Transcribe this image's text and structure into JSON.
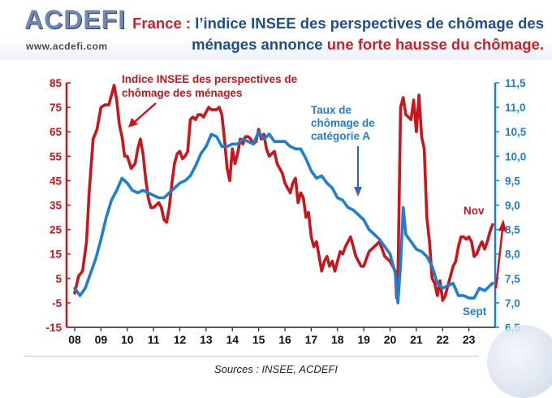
{
  "header": {
    "logo_text": "ACDEFI",
    "logo_url": "www.acdefi.com",
    "title_part1": "France : ",
    "title_part2": "l’indice INSEE des perspectives de chômage des",
    "title_part3": "ménages annonce ",
    "title_part4": "une forte hausse du chômage."
  },
  "colors": {
    "red_series": "#c8161d",
    "blue_series": "#1e7fd0",
    "left_axis": "#c8161d",
    "right_axis": "#1e7fd0"
  },
  "chart_data": {
    "type": "line",
    "x_ticks": [
      "08",
      "09",
      "10",
      "11",
      "12",
      "13",
      "14",
      "15",
      "16",
      "17",
      "18",
      "19",
      "20",
      "21",
      "22",
      "23"
    ],
    "ylim_left": [
      -15,
      85
    ],
    "yticks_left": [
      "85",
      "75",
      "65",
      "55",
      "45",
      "35",
      "25",
      "15",
      "5",
      "-5",
      "-15"
    ],
    "ylim_right": [
      6.5,
      11.5
    ],
    "yticks_right": [
      "11,5",
      "11,0",
      "10,5",
      "10,0",
      "9,5",
      "9,0",
      "8,5",
      "8,0",
      "7,5",
      "7,0",
      "6,5"
    ],
    "grid": false,
    "series": [
      {
        "name": "Indice INSEE des perspectives de chômage des ménages",
        "axis": "left",
        "points": [
          [
            2008.0,
            -1
          ],
          [
            2008.15,
            6
          ],
          [
            2008.3,
            8
          ],
          [
            2008.45,
            20
          ],
          [
            2008.55,
            40
          ],
          [
            2008.7,
            62
          ],
          [
            2008.85,
            66
          ],
          [
            2009.0,
            75
          ],
          [
            2009.15,
            76
          ],
          [
            2009.3,
            76
          ],
          [
            2009.4,
            80
          ],
          [
            2009.5,
            84
          ],
          [
            2009.6,
            78
          ],
          [
            2009.7,
            68
          ],
          [
            2009.8,
            63
          ],
          [
            2009.9,
            55
          ],
          [
            2010.0,
            55
          ],
          [
            2010.15,
            50
          ],
          [
            2010.3,
            52
          ],
          [
            2010.4,
            58
          ],
          [
            2010.5,
            62
          ],
          [
            2010.6,
            56
          ],
          [
            2010.7,
            46
          ],
          [
            2010.8,
            38
          ],
          [
            2010.9,
            34
          ],
          [
            2011.0,
            34
          ],
          [
            2011.1,
            35
          ],
          [
            2011.2,
            36
          ],
          [
            2011.3,
            34
          ],
          [
            2011.4,
            29
          ],
          [
            2011.5,
            28
          ],
          [
            2011.6,
            34
          ],
          [
            2011.7,
            44
          ],
          [
            2011.8,
            52
          ],
          [
            2011.9,
            56
          ],
          [
            2012.0,
            57
          ],
          [
            2012.1,
            54
          ],
          [
            2012.2,
            55
          ],
          [
            2012.3,
            57
          ],
          [
            2012.4,
            70
          ],
          [
            2012.5,
            71
          ],
          [
            2012.6,
            70
          ],
          [
            2012.7,
            72
          ],
          [
            2012.8,
            72
          ],
          [
            2012.9,
            71
          ],
          [
            2013.0,
            73
          ],
          [
            2013.1,
            75
          ],
          [
            2013.2,
            74
          ],
          [
            2013.3,
            74
          ],
          [
            2013.4,
            74
          ],
          [
            2013.5,
            75
          ],
          [
            2013.6,
            72
          ],
          [
            2013.7,
            62
          ],
          [
            2013.8,
            50
          ],
          [
            2013.9,
            45
          ],
          [
            2014.0,
            58
          ],
          [
            2014.1,
            52
          ],
          [
            2014.2,
            56
          ],
          [
            2014.3,
            62
          ],
          [
            2014.4,
            60
          ],
          [
            2014.5,
            63
          ],
          [
            2014.6,
            63
          ],
          [
            2014.7,
            62
          ],
          [
            2014.8,
            60
          ],
          [
            2014.9,
            61
          ],
          [
            2015.0,
            66
          ],
          [
            2015.1,
            62
          ],
          [
            2015.2,
            64
          ],
          [
            2015.3,
            58
          ],
          [
            2015.4,
            55
          ],
          [
            2015.5,
            56
          ],
          [
            2015.6,
            57
          ],
          [
            2015.7,
            52
          ],
          [
            2015.8,
            50
          ],
          [
            2015.9,
            48
          ],
          [
            2016.0,
            44
          ],
          [
            2016.1,
            42
          ],
          [
            2016.2,
            40
          ],
          [
            2016.3,
            44
          ],
          [
            2016.4,
            46
          ],
          [
            2016.5,
            36
          ],
          [
            2016.6,
            40
          ],
          [
            2016.7,
            38
          ],
          [
            2016.8,
            30
          ],
          [
            2016.9,
            32
          ],
          [
            2017.0,
            22
          ],
          [
            2017.1,
            18
          ],
          [
            2017.2,
            20
          ],
          [
            2017.3,
            14
          ],
          [
            2017.4,
            8
          ],
          [
            2017.5,
            12
          ],
          [
            2017.6,
            14
          ],
          [
            2017.7,
            10
          ],
          [
            2017.8,
            12
          ],
          [
            2017.9,
            8
          ],
          [
            2018.0,
            12
          ],
          [
            2018.1,
            16
          ],
          [
            2018.2,
            15
          ],
          [
            2018.3,
            18
          ],
          [
            2018.4,
            20
          ],
          [
            2018.5,
            22
          ],
          [
            2018.6,
            18
          ],
          [
            2018.7,
            14
          ],
          [
            2018.8,
            12
          ],
          [
            2018.9,
            10
          ],
          [
            2019.0,
            10
          ],
          [
            2019.2,
            16
          ],
          [
            2019.4,
            18
          ],
          [
            2019.6,
            20
          ],
          [
            2019.8,
            14
          ],
          [
            2020.0,
            12
          ],
          [
            2020.2,
            8
          ],
          [
            2020.25,
            -3
          ],
          [
            2020.3,
            5
          ],
          [
            2020.4,
            75
          ],
          [
            2020.5,
            79
          ],
          [
            2020.6,
            72
          ],
          [
            2020.8,
            70
          ],
          [
            2020.9,
            78
          ],
          [
            2021.0,
            65
          ],
          [
            2021.1,
            80
          ],
          [
            2021.2,
            63
          ],
          [
            2021.3,
            58
          ],
          [
            2021.4,
            30
          ],
          [
            2021.5,
            20
          ],
          [
            2021.6,
            5
          ],
          [
            2021.7,
            3
          ],
          [
            2021.8,
            -2
          ],
          [
            2021.9,
            4
          ],
          [
            2022.0,
            -4
          ],
          [
            2022.1,
            -2
          ],
          [
            2022.2,
            2
          ],
          [
            2022.3,
            6
          ],
          [
            2022.4,
            10
          ],
          [
            2022.5,
            12
          ],
          [
            2022.6,
            18
          ],
          [
            2022.7,
            22
          ],
          [
            2022.8,
            22
          ],
          [
            2022.9,
            21
          ],
          [
            2023.0,
            22
          ],
          [
            2023.1,
            20
          ],
          [
            2023.2,
            14
          ],
          [
            2023.3,
            15
          ],
          [
            2023.4,
            18
          ],
          [
            2023.5,
            20
          ],
          [
            2023.6,
            17
          ],
          [
            2023.7,
            20
          ],
          [
            2023.8,
            24
          ],
          [
            2023.9,
            27
          ]
        ]
      },
      {
        "name": "Taux de chômage de catégorie A",
        "axis": "right",
        "points": [
          [
            2008.0,
            7.3
          ],
          [
            2008.2,
            7.15
          ],
          [
            2008.4,
            7.3
          ],
          [
            2008.6,
            7.6
          ],
          [
            2008.8,
            7.9
          ],
          [
            2009.0,
            8.3
          ],
          [
            2009.2,
            8.75
          ],
          [
            2009.4,
            9.1
          ],
          [
            2009.6,
            9.3
          ],
          [
            2009.8,
            9.55
          ],
          [
            2010.0,
            9.45
          ],
          [
            2010.2,
            9.3
          ],
          [
            2010.4,
            9.25
          ],
          [
            2010.6,
            9.3
          ],
          [
            2010.8,
            9.25
          ],
          [
            2011.0,
            9.2
          ],
          [
            2011.2,
            9.15
          ],
          [
            2011.4,
            9.15
          ],
          [
            2011.6,
            9.25
          ],
          [
            2011.8,
            9.35
          ],
          [
            2012.0,
            9.45
          ],
          [
            2012.2,
            9.5
          ],
          [
            2012.4,
            9.6
          ],
          [
            2012.6,
            9.8
          ],
          [
            2012.8,
            10.05
          ],
          [
            2013.0,
            10.2
          ],
          [
            2013.2,
            10.45
          ],
          [
            2013.4,
            10.4
          ],
          [
            2013.6,
            10.2
          ],
          [
            2013.8,
            10.2
          ],
          [
            2014.0,
            10.25
          ],
          [
            2014.2,
            10.25
          ],
          [
            2014.4,
            10.35
          ],
          [
            2014.6,
            10.3
          ],
          [
            2014.8,
            10.25
          ],
          [
            2015.0,
            10.5
          ],
          [
            2015.2,
            10.35
          ],
          [
            2015.4,
            10.45
          ],
          [
            2015.6,
            10.3
          ],
          [
            2015.8,
            10.3
          ],
          [
            2016.0,
            10.3
          ],
          [
            2016.2,
            10.2
          ],
          [
            2016.4,
            10.15
          ],
          [
            2016.6,
            10.15
          ],
          [
            2016.8,
            9.95
          ],
          [
            2017.0,
            9.7
          ],
          [
            2017.2,
            9.55
          ],
          [
            2017.4,
            9.6
          ],
          [
            2017.6,
            9.45
          ],
          [
            2017.8,
            9.35
          ],
          [
            2018.0,
            9.15
          ],
          [
            2018.2,
            9.1
          ],
          [
            2018.4,
            8.95
          ],
          [
            2018.6,
            8.9
          ],
          [
            2018.8,
            8.8
          ],
          [
            2019.0,
            8.7
          ],
          [
            2019.2,
            8.5
          ],
          [
            2019.4,
            8.4
          ],
          [
            2019.6,
            8.3
          ],
          [
            2019.8,
            8.15
          ],
          [
            2020.0,
            8.0
          ],
          [
            2020.2,
            7.6
          ],
          [
            2020.3,
            7.0
          ],
          [
            2020.4,
            7.8
          ],
          [
            2020.5,
            8.95
          ],
          [
            2020.6,
            8.4
          ],
          [
            2020.8,
            8.25
          ],
          [
            2021.0,
            8.1
          ],
          [
            2021.2,
            8.05
          ],
          [
            2021.4,
            7.95
          ],
          [
            2021.6,
            7.75
          ],
          [
            2021.8,
            7.4
          ],
          [
            2022.0,
            7.3
          ],
          [
            2022.2,
            7.35
          ],
          [
            2022.4,
            7.4
          ],
          [
            2022.6,
            7.15
          ],
          [
            2022.8,
            7.15
          ],
          [
            2023.0,
            7.1
          ],
          [
            2023.2,
            7.1
          ],
          [
            2023.4,
            7.3
          ],
          [
            2023.6,
            7.25
          ],
          [
            2023.8,
            7.35
          ],
          [
            2023.9,
            7.4
          ]
        ]
      }
    ],
    "annotations": {
      "red_label_line1": "Indice INSEE des perspectives de",
      "red_label_line2": "chômage des ménages",
      "blue_label_line1": "Taux de",
      "blue_label_line2": "chômage de",
      "blue_label_line3": "catégorie A",
      "nov_label": "Nov",
      "sept_label": "Sept"
    }
  },
  "footer": {
    "source": "Sources : INSEE, ACDEFI"
  }
}
